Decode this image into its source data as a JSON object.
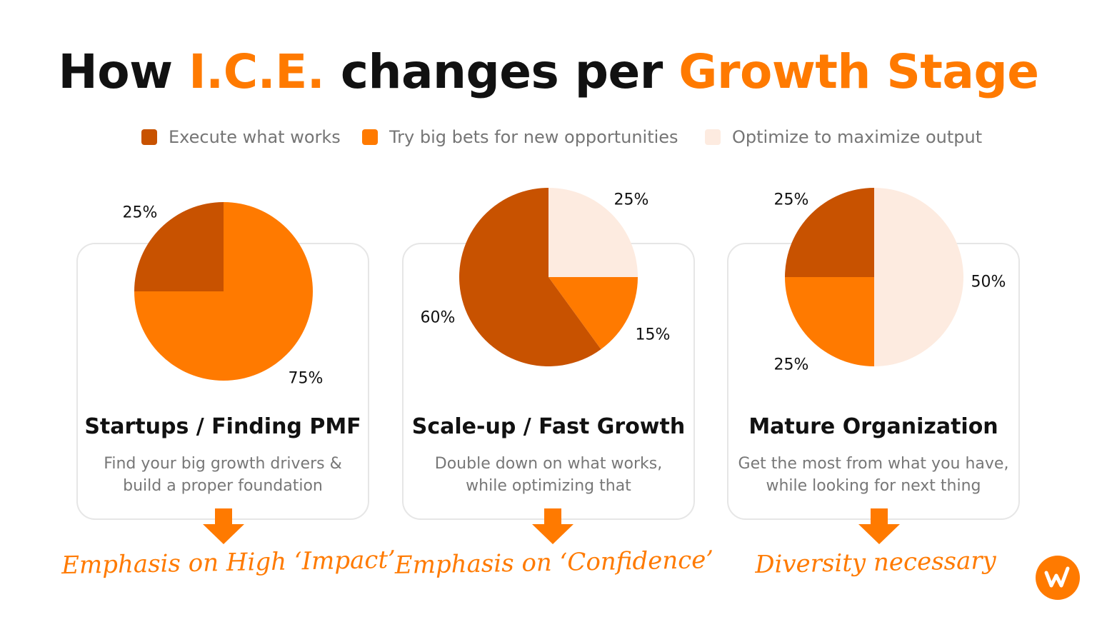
{
  "colors": {
    "execute": "#c85200",
    "bigbets": "#ff7a00",
    "optimize": "#fdebe0",
    "accent": "#ff7a00"
  },
  "title": {
    "part1": "How ",
    "part2": "I.C.E.",
    "part3": " changes per ",
    "part4": "Growth Stage"
  },
  "legend": [
    {
      "label": "Execute what works",
      "color_key": "execute"
    },
    {
      "label": "Try big bets for new opportunities",
      "color_key": "bigbets"
    },
    {
      "label": "Optimize to maximize output",
      "color_key": "optimize"
    }
  ],
  "chart_data": [
    {
      "type": "pie",
      "title": "Startups / Finding PMF",
      "slices": [
        {
          "series": "Execute what works",
          "value": 25,
          "label": "25%"
        },
        {
          "series": "Try big bets for new opportunities",
          "value": 75,
          "label": "75%"
        }
      ]
    },
    {
      "type": "pie",
      "title": "Scale-up / Fast Growth",
      "slices": [
        {
          "series": "Optimize to maximize output",
          "value": 25,
          "label": "25%"
        },
        {
          "series": "Try big bets for new opportunities",
          "value": 15,
          "label": "15%"
        },
        {
          "series": "Execute what works",
          "value": 60,
          "label": "60%"
        }
      ]
    },
    {
      "type": "pie",
      "title": "Mature Organization",
      "slices": [
        {
          "series": "Optimize to maximize output",
          "value": 50,
          "label": "50%"
        },
        {
          "series": "Try big bets for new opportunities",
          "value": 25,
          "label": "25%"
        },
        {
          "series": "Execute what works",
          "value": 25,
          "label": "25%"
        }
      ]
    }
  ],
  "cards": [
    {
      "title": "Startups / Finding PMF",
      "desc_line1": "Find your big growth drivers &",
      "desc_line2": "build a proper foundation",
      "emphasis": "Emphasis on High ‘Impact’"
    },
    {
      "title": "Scale-up / Fast Growth",
      "desc_line1": "Double down on what works,",
      "desc_line2": "while optimizing that",
      "emphasis": "Emphasis on ‘Confidence’"
    },
    {
      "title": "Mature Organization",
      "desc_line1": "Get the most from what you have,",
      "desc_line2": "while looking for next thing",
      "emphasis": "Diversity necessary"
    }
  ],
  "logo": {
    "glyph": "w",
    "icon": "brand-logo-icon"
  }
}
